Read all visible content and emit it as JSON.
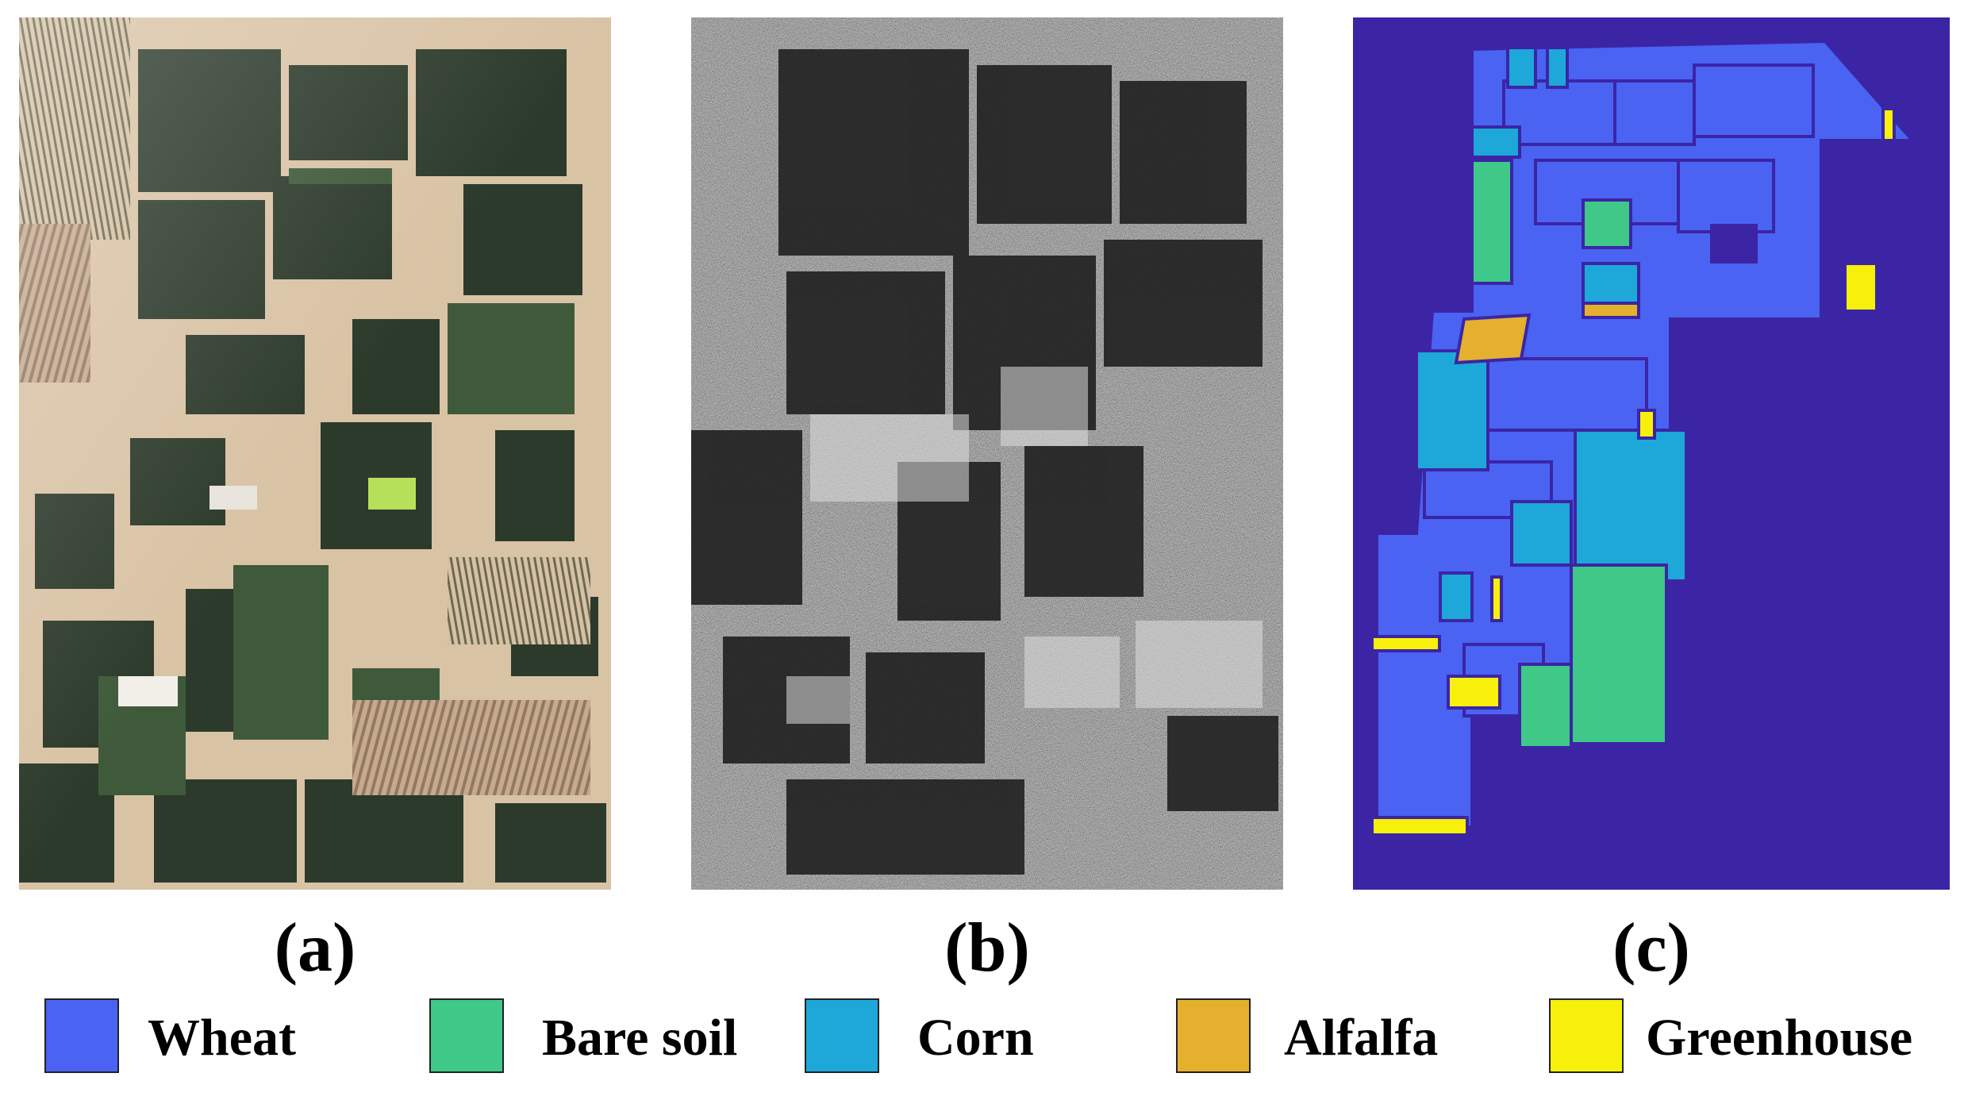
{
  "panels": [
    {
      "id": "a",
      "caption": "(a)",
      "image": "optical-satellite-image"
    },
    {
      "id": "b",
      "caption": "(b)",
      "image": "sar-image"
    },
    {
      "id": "c",
      "caption": "(c)",
      "image": "ground-truth-map"
    }
  ],
  "colors": {
    "background_class": "#3b25a5",
    "wheat": "#4a63f2",
    "bare_soil": "#3fc888",
    "corn": "#1ea7d9",
    "alfalfa": "#e4b02e",
    "greenhouse": "#f7f00a"
  },
  "legend": [
    {
      "label": "Wheat",
      "color": "#4a63f2"
    },
    {
      "label": "Bare soil",
      "color": "#3fc888"
    },
    {
      "label": "Corn",
      "color": "#1ea7d9"
    },
    {
      "label": "Alfalfa",
      "color": "#e4b02e"
    },
    {
      "label": "Greenhouse",
      "color": "#f7f00a"
    }
  ]
}
